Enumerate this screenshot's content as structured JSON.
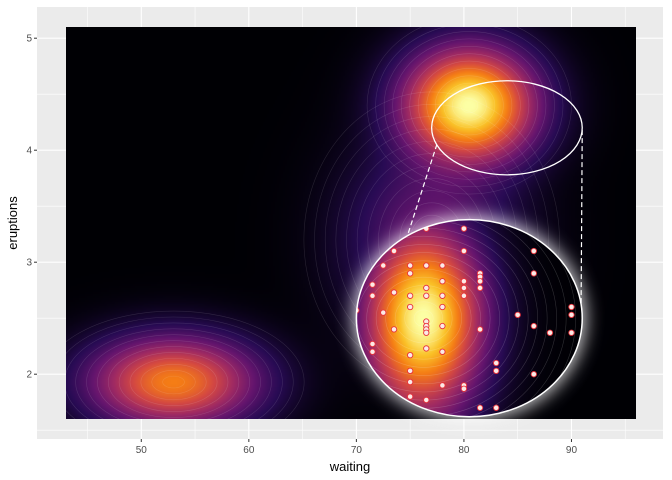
{
  "chart_data": {
    "type": "scatter",
    "subtype": "2d-density-with-magnified-inset",
    "title": "",
    "xlabel": "waiting",
    "ylabel": "eruptions",
    "xlim": [
      43,
      96
    ],
    "ylim": [
      1.6,
      5.1
    ],
    "xticks": [
      50,
      60,
      70,
      80,
      90
    ],
    "yticks": [
      2,
      3,
      4,
      5
    ],
    "grid": true,
    "legend": "none",
    "colormap": "inferno",
    "density_modes": [
      {
        "x": 53,
        "y": 1.93,
        "level": 0.62
      },
      {
        "x": 80.5,
        "y": 4.4,
        "level": 1.0
      },
      {
        "x": 77,
        "y": 3.2,
        "level": 0.18
      }
    ],
    "zoom_region": {
      "x_center": 84,
      "y_center": 4.2,
      "x_halfwidth": 7,
      "y_halfwidth": 0.42
    },
    "zoom_inset": {
      "x_center": 80.5,
      "y_center": 2.5,
      "x_halfwidth": 10.5,
      "y_halfwidth": 0.88
    },
    "inset_points": [
      [
        70,
        2.85
      ],
      [
        70,
        2.57
      ],
      [
        70,
        2.23
      ],
      [
        71.5,
        2.8
      ],
      [
        71.5,
        2.7
      ],
      [
        71.5,
        2.27
      ],
      [
        71.5,
        2.2
      ],
      [
        72.5,
        2.97
      ],
      [
        72.5,
        2.55
      ],
      [
        73.5,
        3.1
      ],
      [
        73.5,
        2.73
      ],
      [
        73.5,
        2.4
      ],
      [
        75,
        2.97
      ],
      [
        75,
        2.9
      ],
      [
        75,
        2.7
      ],
      [
        75,
        2.6
      ],
      [
        75,
        2.17
      ],
      [
        75,
        2.03
      ],
      [
        75,
        1.93
      ],
      [
        75,
        1.8
      ],
      [
        76.5,
        3.3
      ],
      [
        76.5,
        2.97
      ],
      [
        76.5,
        2.77
      ],
      [
        76.5,
        2.7
      ],
      [
        76.5,
        2.47
      ],
      [
        76.5,
        2.43
      ],
      [
        76.5,
        2.4
      ],
      [
        76.5,
        2.37
      ],
      [
        76.5,
        2.23
      ],
      [
        76.5,
        1.77
      ],
      [
        78,
        2.97
      ],
      [
        78,
        2.83
      ],
      [
        78,
        2.7
      ],
      [
        78,
        2.6
      ],
      [
        78,
        2.43
      ],
      [
        78,
        2.2
      ],
      [
        78,
        1.9
      ],
      [
        80,
        3.3
      ],
      [
        80,
        3.1
      ],
      [
        80,
        2.83
      ],
      [
        80,
        2.77
      ],
      [
        80,
        2.7
      ],
      [
        80,
        1.9
      ],
      [
        80,
        1.87
      ],
      [
        81.5,
        2.9
      ],
      [
        81.5,
        2.87
      ],
      [
        81.5,
        2.83
      ],
      [
        81.5,
        2.77
      ],
      [
        81.5,
        2.4
      ],
      [
        81.5,
        1.7
      ],
      [
        83,
        2.1
      ],
      [
        83,
        2.03
      ],
      [
        83,
        1.7
      ],
      [
        85,
        2.53
      ],
      [
        86.5,
        3.1
      ],
      [
        86.5,
        2.9
      ],
      [
        86.5,
        2.43
      ],
      [
        86.5,
        2.0
      ],
      [
        88,
        2.37
      ],
      [
        90,
        2.6
      ],
      [
        90,
        2.53
      ],
      [
        90,
        2.37
      ]
    ]
  }
}
